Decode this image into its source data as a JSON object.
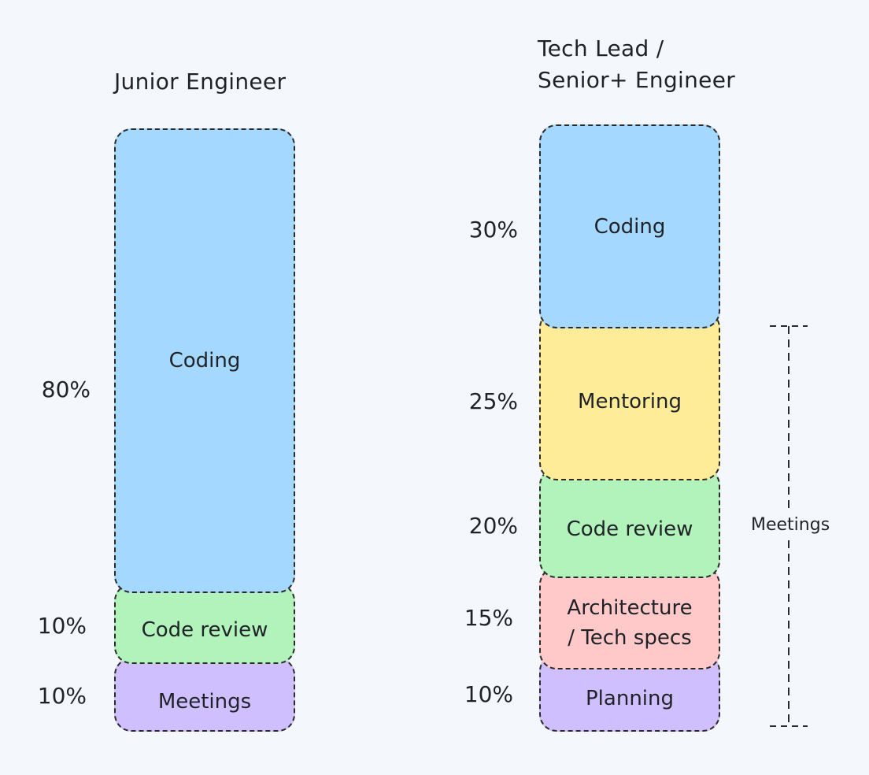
{
  "columns": [
    {
      "title": "Junior Engineer",
      "segments": [
        {
          "label": "Coding",
          "percent": "80%",
          "color": "#a5d8ff"
        },
        {
          "label": "Code review",
          "percent": "10%",
          "color": "#b2f2bb"
        },
        {
          "label": "Meetings",
          "percent": "10%",
          "color": "#d0bfff"
        }
      ]
    },
    {
      "title": "Tech Lead /\nSenior+ Engineer",
      "segments": [
        {
          "label": "Coding",
          "percent": "30%",
          "color": "#a5d8ff"
        },
        {
          "label": "Mentoring",
          "percent": "25%",
          "color": "#ffec99"
        },
        {
          "label": "Code review",
          "percent": "20%",
          "color": "#b2f2bb"
        },
        {
          "label": "Architecture\n/ Tech specs",
          "percent": "15%",
          "color": "#ffc9c9"
        },
        {
          "label": "Planning",
          "percent": "10%",
          "color": "#d0bfff"
        }
      ],
      "bracket_label": "Meetings"
    }
  ]
}
